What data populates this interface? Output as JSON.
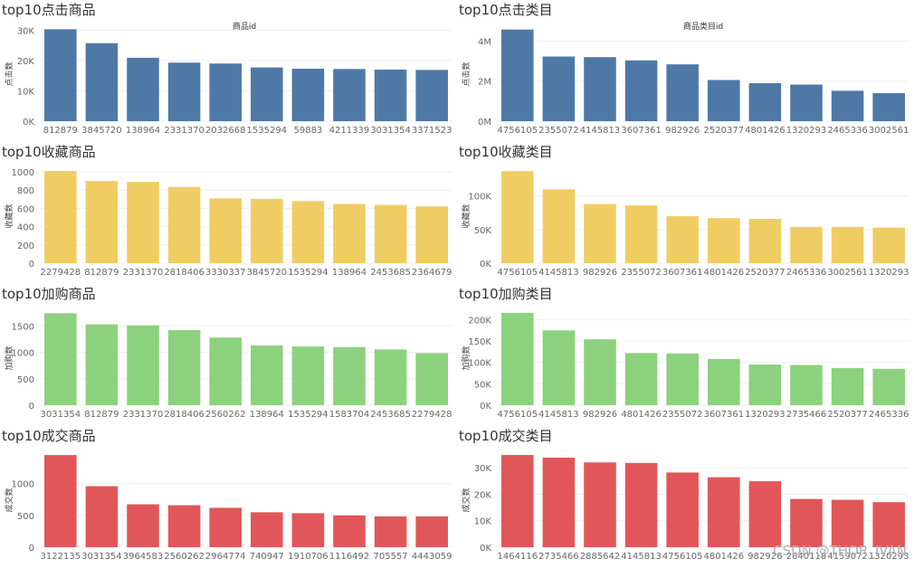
{
  "watermark": "CSDN @THOR_IVAN",
  "chart_data": [
    {
      "type": "bar",
      "title": "top10点击商品",
      "subtitle": "商品id",
      "ylabel": "点击数",
      "color": "#4e79a7",
      "ylim": [
        0,
        31000
      ],
      "yticks": [
        0,
        10000,
        20000,
        30000
      ],
      "ytick_labels": [
        "0K",
        "10K",
        "20K",
        "30K"
      ],
      "categories": [
        "812879",
        "3845720",
        "138964",
        "2331370",
        "2032668",
        "1535294",
        "59883",
        "4211339",
        "3031354",
        "3371523"
      ],
      "values": [
        30300,
        25700,
        20900,
        19300,
        19000,
        17700,
        17300,
        17200,
        17000,
        16900
      ]
    },
    {
      "type": "bar",
      "title": "top10点击类目",
      "subtitle": "商品类目id",
      "ylabel": "点击数",
      "color": "#4e79a7",
      "ylim": [
        0,
        4700000
      ],
      "yticks": [
        0,
        2000000,
        4000000
      ],
      "ytick_labels": [
        "0M",
        "2M",
        "4M"
      ],
      "categories": [
        "4756105",
        "2355072",
        "4145813",
        "3607361",
        "982926",
        "2520377",
        "4801426",
        "1320293",
        "2465336",
        "3002561"
      ],
      "values": [
        4580000,
        3230000,
        3200000,
        3040000,
        2840000,
        2060000,
        1900000,
        1830000,
        1520000,
        1400000
      ]
    },
    {
      "type": "bar",
      "title": "top10收藏商品",
      "subtitle": "",
      "ylabel": "收藏数",
      "color": "#f0cd63",
      "ylim": [
        0,
        1030
      ],
      "yticks": [
        0,
        200,
        400,
        600,
        800,
        1000
      ],
      "ytick_labels": [
        "0",
        "200",
        "400",
        "600",
        "800",
        "1000"
      ],
      "categories": [
        "2279428",
        "812879",
        "2331370",
        "2818406",
        "3330337",
        "3845720",
        "1535294",
        "138964",
        "2453685",
        "2364679"
      ],
      "values": [
        1010,
        900,
        890,
        835,
        710,
        705,
        680,
        648,
        638,
        622
      ]
    },
    {
      "type": "bar",
      "title": "top10收藏类目",
      "subtitle": "",
      "ylabel": "收藏数",
      "color": "#f0cd63",
      "ylim": [
        0,
        140000
      ],
      "yticks": [
        0,
        50000,
        100000
      ],
      "ytick_labels": [
        "0K",
        "50K",
        "100K"
      ],
      "categories": [
        "4756105",
        "4145813",
        "982926",
        "2355072",
        "3607361",
        "4801426",
        "2520377",
        "2465336",
        "3002561",
        "1320293"
      ],
      "values": [
        137000,
        110000,
        88000,
        86000,
        70000,
        67000,
        66000,
        54000,
        54000,
        53000
      ]
    },
    {
      "type": "bar",
      "title": "top10加购商品",
      "subtitle": "",
      "ylabel": "加购数",
      "color": "#8cd17d",
      "ylim": [
        0,
        1780
      ],
      "yticks": [
        0,
        500,
        1000,
        1500
      ],
      "ytick_labels": [
        "0",
        "500",
        "1000",
        "1500"
      ],
      "categories": [
        "3031354",
        "812879",
        "2331370",
        "2818406",
        "2560262",
        "138964",
        "1535294",
        "1583704",
        "2453685",
        "2279428"
      ],
      "values": [
        1740,
        1530,
        1510,
        1420,
        1280,
        1130,
        1110,
        1100,
        1055,
        985
      ]
    },
    {
      "type": "bar",
      "title": "top10加购类目",
      "subtitle": "",
      "ylabel": "加购数",
      "color": "#8cd17d",
      "ylim": [
        0,
        220000
      ],
      "yticks": [
        0,
        50000,
        100000,
        150000,
        200000
      ],
      "ytick_labels": [
        "0K",
        "50K",
        "100K",
        "150K",
        "200K"
      ],
      "categories": [
        "4756105",
        "4145813",
        "982926",
        "4801426",
        "2355072",
        "3607361",
        "1320293",
        "2735466",
        "2520377",
        "2465336"
      ],
      "values": [
        216000,
        175000,
        154000,
        122000,
        121000,
        108000,
        95000,
        94000,
        87000,
        85000
      ]
    },
    {
      "type": "bar",
      "title": "top10成交商品",
      "subtitle": "",
      "ylabel": "成交数",
      "color": "#e15759",
      "ylim": [
        0,
        1480
      ],
      "yticks": [
        0,
        500,
        1000
      ],
      "ytick_labels": [
        "0",
        "500",
        "1000"
      ],
      "categories": [
        "3122135",
        "3031354",
        "3964583",
        "2560262",
        "2964774",
        "740947",
        "1910706",
        "1116492",
        "705557",
        "4443059"
      ],
      "values": [
        1450,
        960,
        675,
        660,
        620,
        550,
        535,
        500,
        485,
        485
      ]
    },
    {
      "type": "bar",
      "title": "top10成交类目",
      "subtitle": "",
      "ylabel": "成交数",
      "color": "#e15759",
      "ylim": [
        0,
        35500
      ],
      "yticks": [
        0,
        10000,
        20000,
        30000
      ],
      "ytick_labels": [
        "0K",
        "10K",
        "20K",
        "30K"
      ],
      "categories": [
        "1464116",
        "2735466",
        "2885642",
        "4145813",
        "4756105",
        "4801426",
        "982926",
        "2640118",
        "4159072",
        "1320293"
      ],
      "values": [
        34800,
        33800,
        32000,
        31800,
        28200,
        26400,
        24900,
        18200,
        17900,
        17000
      ]
    }
  ]
}
